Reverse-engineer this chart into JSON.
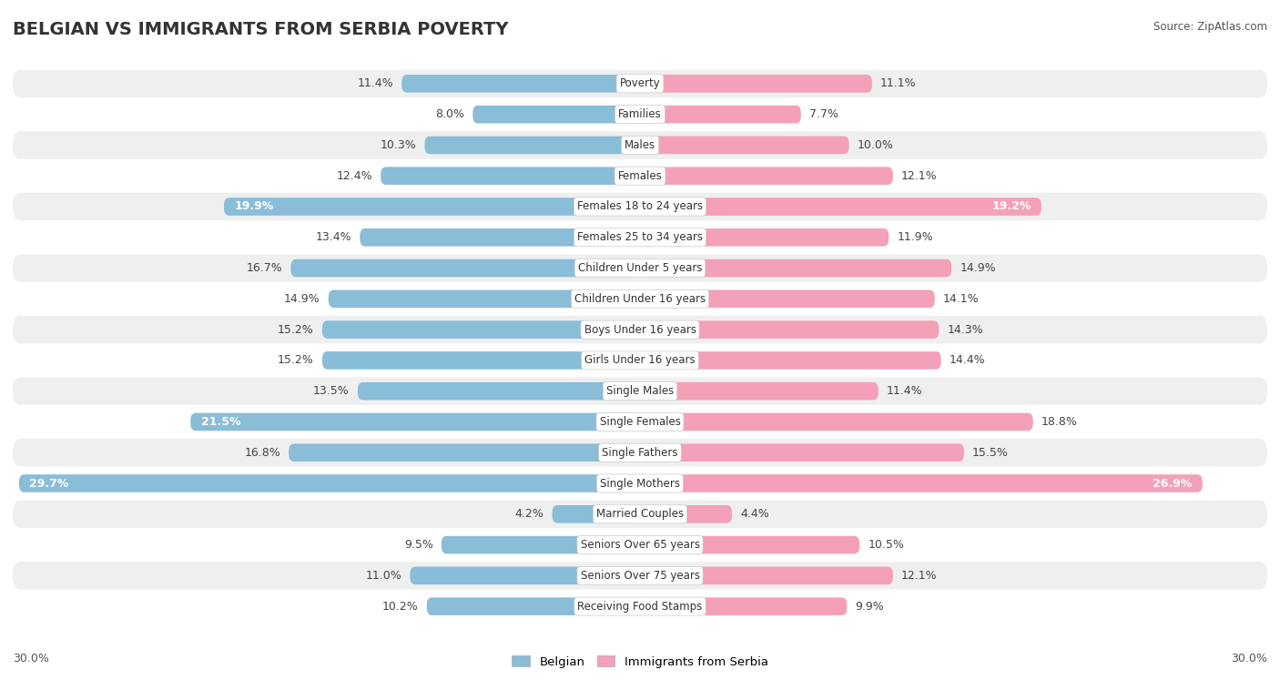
{
  "title": "BELGIAN VS IMMIGRANTS FROM SERBIA POVERTY",
  "source": "Source: ZipAtlas.com",
  "categories": [
    "Poverty",
    "Families",
    "Males",
    "Females",
    "Females 18 to 24 years",
    "Females 25 to 34 years",
    "Children Under 5 years",
    "Children Under 16 years",
    "Boys Under 16 years",
    "Girls Under 16 years",
    "Single Males",
    "Single Females",
    "Single Fathers",
    "Single Mothers",
    "Married Couples",
    "Seniors Over 65 years",
    "Seniors Over 75 years",
    "Receiving Food Stamps"
  ],
  "belgian": [
    11.4,
    8.0,
    10.3,
    12.4,
    19.9,
    13.4,
    16.7,
    14.9,
    15.2,
    15.2,
    13.5,
    21.5,
    16.8,
    29.7,
    4.2,
    9.5,
    11.0,
    10.2
  ],
  "serbia": [
    11.1,
    7.7,
    10.0,
    12.1,
    19.2,
    11.9,
    14.9,
    14.1,
    14.3,
    14.4,
    11.4,
    18.8,
    15.5,
    26.9,
    4.4,
    10.5,
    12.1,
    9.9
  ],
  "belgian_color": "#89bdd8",
  "serbia_color": "#f4a0b8",
  "highlight_threshold": 19.0,
  "bar_height": 0.58,
  "bg_row_light": "#efefef",
  "bg_row_white": "#ffffff",
  "axis_max": 30.0,
  "legend_belgian": "Belgian",
  "legend_serbia": "Immigrants from Serbia",
  "title_fontsize": 14,
  "label_fontsize": 9,
  "cat_fontsize": 8.5
}
